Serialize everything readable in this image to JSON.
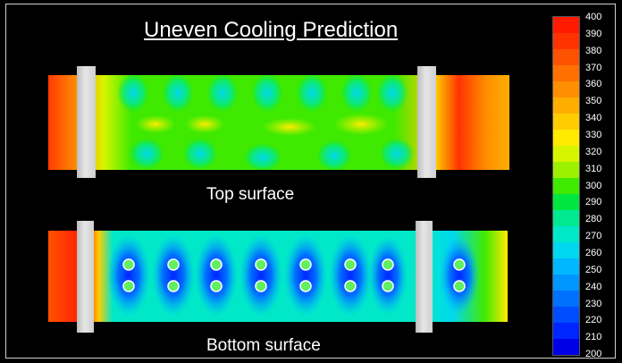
{
  "title": "Uneven Cooling Prediction",
  "panels": {
    "top": {
      "label": "Top surface"
    },
    "bottom": {
      "label": "Bottom surface"
    }
  },
  "scale": {
    "ticks": [
      "400",
      "390",
      "380",
      "370",
      "360",
      "350",
      "340",
      "330",
      "320",
      "310",
      "300",
      "290",
      "280",
      "270",
      "260",
      "250",
      "240",
      "230",
      "220",
      "210",
      "200"
    ],
    "colors": [
      "#ff1a00",
      "#ff3300",
      "#ff5200",
      "#ff7000",
      "#ff8f00",
      "#ffae00",
      "#ffcc00",
      "#ffea00",
      "#d8f500",
      "#9cf000",
      "#40ea00",
      "#00e640",
      "#00e890",
      "#00e8c8",
      "#00d8f0",
      "#00b8ff",
      "#0096ff",
      "#0070ff",
      "#004cff",
      "#0026ff",
      "#0000e8"
    ]
  }
}
